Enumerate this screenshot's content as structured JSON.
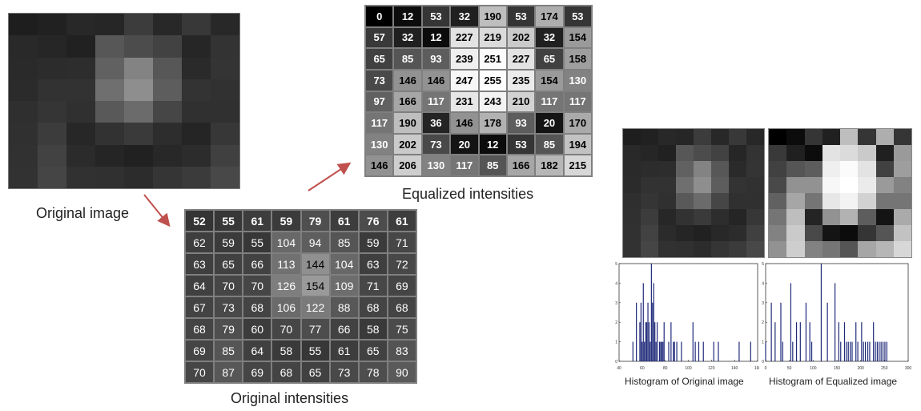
{
  "captions": {
    "original_image": "Original image",
    "equalized_intensities": "Equalized intensities",
    "original_intensities": "Original intensities",
    "histogram_original": "Histogram of Original image",
    "histogram_equalized": "Histogram of Equalized image"
  },
  "original_intensities": [
    [
      52,
      55,
      61,
      59,
      79,
      61,
      76,
      61
    ],
    [
      62,
      59,
      55,
      104,
      94,
      85,
      59,
      71
    ],
    [
      63,
      65,
      66,
      113,
      144,
      104,
      63,
      72
    ],
    [
      64,
      70,
      70,
      126,
      154,
      109,
      71,
      69
    ],
    [
      67,
      73,
      68,
      106,
      122,
      88,
      68,
      68
    ],
    [
      68,
      79,
      60,
      70,
      77,
      66,
      58,
      75
    ],
    [
      69,
      85,
      64,
      58,
      55,
      61,
      65,
      83
    ],
    [
      70,
      87,
      69,
      68,
      65,
      73,
      78,
      90
    ]
  ],
  "equalized_intensities": [
    [
      0,
      12,
      53,
      32,
      190,
      53,
      174,
      53
    ],
    [
      57,
      32,
      12,
      227,
      219,
      202,
      32,
      154
    ],
    [
      65,
      85,
      93,
      239,
      251,
      227,
      65,
      158
    ],
    [
      73,
      146,
      146,
      247,
      255,
      235,
      154,
      130
    ],
    [
      97,
      166,
      117,
      231,
      243,
      210,
      117,
      117
    ],
    [
      117,
      190,
      36,
      146,
      178,
      93,
      20,
      170
    ],
    [
      130,
      202,
      73,
      20,
      12,
      53,
      85,
      194
    ],
    [
      146,
      206,
      130,
      117,
      85,
      166,
      182,
      215
    ]
  ],
  "histograms": {
    "original": {
      "xticks": [
        "40",
        "60",
        "80",
        "100",
        "120",
        "140",
        "160"
      ],
      "yticks": [
        "0",
        "1",
        "2",
        "3",
        "4",
        "5"
      ],
      "xlim": [
        40,
        160
      ],
      "ylim": [
        0,
        5
      ]
    },
    "equalized": {
      "xticks": [
        "0",
        "50",
        "100",
        "150",
        "200",
        "250",
        "300"
      ],
      "yticks": [
        "0",
        "1",
        "2",
        "3",
        "4",
        "5"
      ],
      "xlim": [
        0,
        300
      ],
      "ylim": [
        0,
        5
      ]
    }
  },
  "colors": {
    "arrow": "#c0504d",
    "grid_line": "#7f7f7f",
    "histogram_bar": "#1f2a7a"
  }
}
